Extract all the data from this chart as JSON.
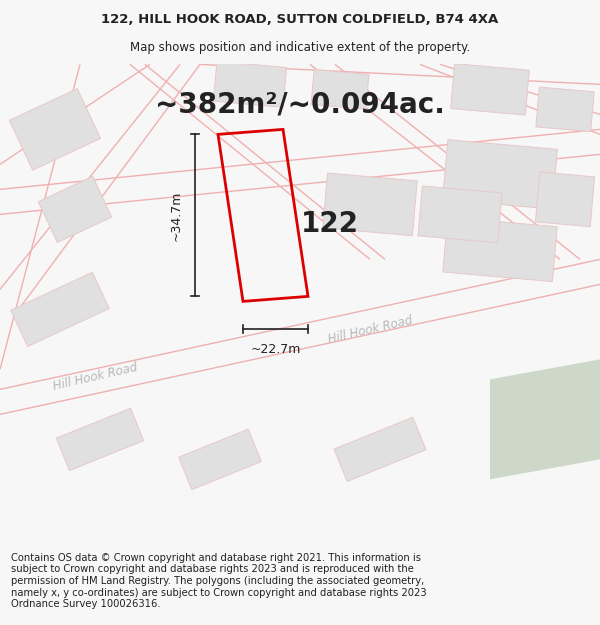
{
  "title_line1": "122, HILL HOOK ROAD, SUTTON COLDFIELD, B74 4XA",
  "title_line2": "Map shows position and indicative extent of the property.",
  "area_text": "~382m²/~0.094ac.",
  "label_number": "122",
  "dim_width": "~22.7m",
  "dim_height": "~34.7m",
  "road_label_bottom": "Hill Hook Road",
  "road_label_mid": "Hill Hook Road",
  "footer_text": "Contains OS data © Crown copyright and database right 2021. This information is subject to Crown copyright and database rights 2023 and is reproduced with the permission of HM Land Registry. The polygons (including the associated geometry, namely x, y co-ordinates) are subject to Crown copyright and database rights 2023 Ordnance Survey 100026316.",
  "bg_color": "#f7f7f7",
  "map_bg_color": "#ffffff",
  "plot_color": "#dd0000",
  "road_line_color": "#f0b0b0",
  "building_fill_color": "#e0e0e0",
  "building_edge_color": "#e8c8c8",
  "green_color": "#cdd8c8",
  "dim_color": "#222222",
  "text_color": "#222222",
  "road_text_color": "#b8b8b8",
  "title_fontsize": 9.5,
  "subtitle_fontsize": 8.5,
  "area_fontsize": 20,
  "label_fontsize": 20,
  "footer_fontsize": 7.2
}
